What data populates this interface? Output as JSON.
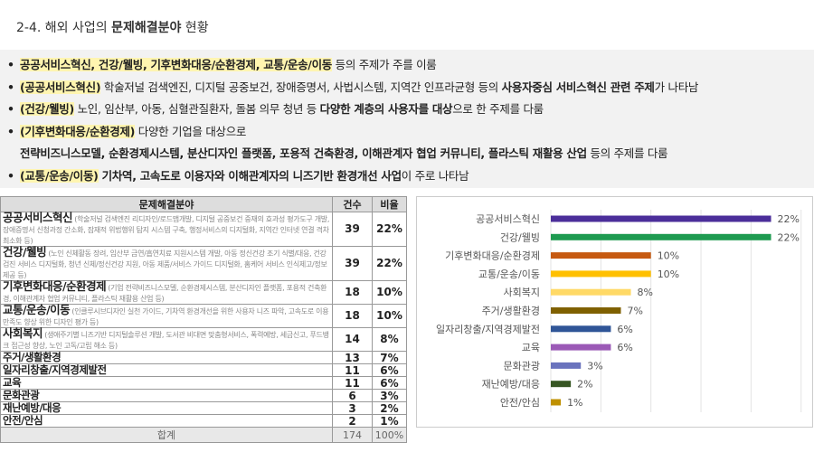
{
  "title": {
    "prefix": "2-4. 해외 사업의 ",
    "bold": "문제해결분야",
    "suffix": " 현황"
  },
  "summary": {
    "b1": {
      "hl": "공공서비스혁신, 건강/웰빙, 기후변화대응/순환경제, 교통/운송/이동",
      "rest": " 등의 주제가 주를 이룸"
    },
    "b2": {
      "hl": "(공공서비스혁신)",
      "t1": " 학술저널 검색엔진, 디지털 공중보건, 장애증명서, 사법시스템, 지역간 인프라균형 등의 ",
      "bold": "사용자중심 서비스혁신 관련 주제",
      "t2": "가 나타남"
    },
    "b3": {
      "hl": "(건강/웰빙)",
      "t1": " 노인, 임산부, 아동, 심혈관질환자, 돌봄 의무 청년 등 ",
      "bold": "다양한 계층의 사용자를 대상",
      "t2": "으로 한 주제를 다룸"
    },
    "b4": {
      "hl": "(기후변화대응/순환경제)",
      "t1": " 다양한 기업을 대상으로",
      "bold": "전략비즈니스모델, 순환경제시스템, 분산디자인 플랫폼, 포용적 건축환경, 이해관계자 협업 커뮤니티, 플라스틱 재활용 산업",
      "t2": " 등의 주제를 다룸"
    },
    "b5": {
      "hl": "(교통/운송/이동)",
      "bold": " 기차역, 고속도로 이용자와 이해관계자의 니즈기반 환경개선 사업",
      "t2": "이 주로 나타남"
    }
  },
  "table": {
    "headers": [
      "문제해결분야",
      "건수",
      "비율"
    ],
    "rows": [
      {
        "name": "공공서비스혁신",
        "desc": " (학술저널 검색엔진 리디자인/로드맵개발, 디지털 공중보건 중재의 효과성 평가도구 개발, 장애증명서 신청과정 간소화, 잠재적 위법행위 탐지 시스템 구축, 행정서비스의 디지털화, 지역간 인터넷 연결 격차 최소화 등)",
        "count": "39",
        "ratio": "22%"
      },
      {
        "name": "건강/웰빙",
        "desc": " (노인 신체활동 장려, 임산부 금연/흡연치료 지원시스템 개발, 아동 정신건강 조기 식별/대응, 건강검진 서비스 디지털화, 청년 신체/정신건강 지원, 아동 제품/서비스 가이드 디지털화, 홈케어 서비스 인식제고/정보제공 등)",
        "count": "39",
        "ratio": "22%"
      },
      {
        "name": "기후변화대응/순환경제",
        "desc": " (기업 전략비즈니스모델, 순환경제시스템, 분산디자인 플랫폼, 포용적 건축환경, 이해관계자 협업 커뮤니티, 플라스틱 재활용 산업 등)",
        "count": "18",
        "ratio": "10%"
      },
      {
        "name": "교통/운송/이동",
        "desc": " (인클루시브디자인 실천 가이드, 기차역 환경개선을 위한 사용자 니즈 파악, 고속도로 이용 만족도 향상 위한 디자인 평가 등)",
        "count": "18",
        "ratio": "10%"
      },
      {
        "name": "사회복지",
        "desc": " (생애주기별 니즈기반 디지털솔루션 개발, 도서관 비대면 맞춤형서비스, 폭력예방, 세금신고, 푸드뱅크 접근성 향상, 노인 고독/고립 해소 등)",
        "count": "14",
        "ratio": "8%"
      },
      {
        "name": "주거/생활환경",
        "desc": "",
        "count": "13",
        "ratio": "7%"
      },
      {
        "name": "일자리창출/지역경제발전",
        "desc": "",
        "count": "11",
        "ratio": "6%"
      },
      {
        "name": "교육",
        "desc": "",
        "count": "11",
        "ratio": "6%"
      },
      {
        "name": "문화관광",
        "desc": "",
        "count": "6",
        "ratio": "3%"
      },
      {
        "name": "재난예방/대응",
        "desc": "",
        "count": "3",
        "ratio": "2%"
      },
      {
        "name": "안전/안심",
        "desc": "",
        "count": "2",
        "ratio": "1%"
      }
    ],
    "total": {
      "label": "합계",
      "count": "174",
      "ratio": "100%"
    }
  },
  "chart_data": {
    "type": "bar",
    "orientation": "horizontal",
    "categories": [
      "공공서비스혁신",
      "건강/웰빙",
      "기후변화대응/순환경제",
      "교통/운송/이동",
      "사회복지",
      "주거/생활환경",
      "일자리창출/지역경제발전",
      "교육",
      "문화관광",
      "재난예방/대응",
      "안전/안심"
    ],
    "values": [
      22,
      22,
      10,
      10,
      8,
      7,
      6,
      6,
      3,
      2,
      1
    ],
    "labels": [
      "22%",
      "22%",
      "10%",
      "10%",
      "8%",
      "7%",
      "6%",
      "6%",
      "3%",
      "2%",
      "1%"
    ],
    "colors": [
      "#4b2e9a",
      "#1e9a50",
      "#c65a11",
      "#ffc000",
      "#ffd966",
      "#7f6000",
      "#2f5597",
      "#9b59b6",
      "#6a73bd",
      "#375623",
      "#bf9000"
    ],
    "xlim": [
      0,
      25
    ],
    "grid": true,
    "unit": "%"
  }
}
